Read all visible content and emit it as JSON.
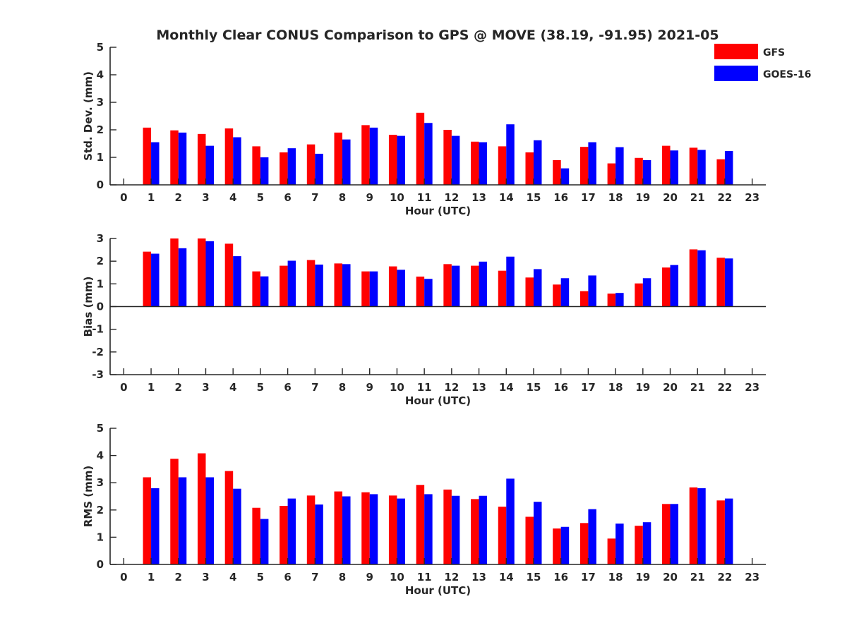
{
  "figure": {
    "title": "Monthly Clear CONUS Comparison to GPS @ MOVE (38.19, -91.95) 2021-05",
    "legend": {
      "placement": "top-right",
      "items": [
        {
          "name": "GFS",
          "color": "#ff0000"
        },
        {
          "name": "GOES-16",
          "color": "#0000ff"
        }
      ]
    }
  },
  "chart_data": [
    {
      "type": "bar",
      "xlabel": "Hour (UTC)",
      "ylabel": "Std. Dev. (mm)",
      "ylim": [
        0,
        5
      ],
      "yticks": [
        0,
        1,
        2,
        3,
        4,
        5
      ],
      "xlim": [
        -0.5,
        23.5
      ],
      "xticks": [
        0,
        1,
        2,
        3,
        4,
        5,
        6,
        7,
        8,
        9,
        10,
        11,
        12,
        13,
        14,
        15,
        16,
        17,
        18,
        19,
        20,
        21,
        22,
        23
      ],
      "grid": false,
      "categories": [
        1,
        2,
        3,
        4,
        5,
        6,
        7,
        8,
        9,
        10,
        11,
        12,
        13,
        14,
        15,
        16,
        17,
        18,
        19,
        20,
        21,
        22
      ],
      "series": [
        {
          "name": "GFS",
          "color": "#ff0000",
          "values": [
            2.08,
            1.98,
            1.85,
            2.05,
            1.4,
            1.18,
            1.47,
            1.9,
            2.17,
            1.82,
            2.62,
            2.0,
            1.57,
            1.4,
            1.18,
            0.9,
            1.38,
            0.78,
            0.98,
            1.42,
            1.35,
            0.93
          ]
        },
        {
          "name": "GOES-16",
          "color": "#0000ff",
          "values": [
            1.55,
            1.9,
            1.42,
            1.73,
            1.0,
            1.33,
            1.13,
            1.65,
            2.08,
            1.78,
            2.25,
            1.78,
            1.55,
            2.2,
            1.62,
            0.6,
            1.55,
            1.37,
            0.9,
            1.25,
            1.27,
            1.23
          ]
        }
      ]
    },
    {
      "type": "bar",
      "xlabel": "Hour (UTC)",
      "ylabel": "Bias (mm)",
      "ylim": [
        -3,
        3
      ],
      "yticks": [
        -3,
        -2,
        -1,
        0,
        1,
        2,
        3
      ],
      "xlim": [
        -0.5,
        23.5
      ],
      "xticks": [
        0,
        1,
        2,
        3,
        4,
        5,
        6,
        7,
        8,
        9,
        10,
        11,
        12,
        13,
        14,
        15,
        16,
        17,
        18,
        19,
        20,
        21,
        22,
        23
      ],
      "grid": false,
      "zero_line": true,
      "categories": [
        1,
        2,
        3,
        4,
        5,
        6,
        7,
        8,
        9,
        10,
        11,
        12,
        13,
        14,
        15,
        16,
        17,
        18,
        19,
        20,
        21,
        22
      ],
      "series": [
        {
          "name": "GFS",
          "color": "#ff0000",
          "values": [
            2.42,
            3.0,
            3.0,
            2.77,
            1.55,
            1.8,
            2.05,
            1.9,
            1.55,
            1.77,
            1.32,
            1.87,
            1.8,
            1.58,
            1.28,
            0.97,
            0.68,
            0.57,
            1.02,
            1.72,
            2.52,
            2.15
          ]
        },
        {
          "name": "GOES-16",
          "color": "#0000ff",
          "values": [
            2.33,
            2.57,
            2.88,
            2.22,
            1.33,
            2.02,
            1.85,
            1.87,
            1.55,
            1.62,
            1.22,
            1.8,
            1.98,
            2.2,
            1.65,
            1.25,
            1.37,
            0.6,
            1.25,
            1.83,
            2.48,
            2.12
          ]
        }
      ]
    },
    {
      "type": "bar",
      "xlabel": "Hour (UTC)",
      "ylabel": "RMS (mm)",
      "ylim": [
        0,
        5
      ],
      "yticks": [
        0,
        1,
        2,
        3,
        4,
        5
      ],
      "xlim": [
        -0.5,
        23.5
      ],
      "xticks": [
        0,
        1,
        2,
        3,
        4,
        5,
        6,
        7,
        8,
        9,
        10,
        11,
        12,
        13,
        14,
        15,
        16,
        17,
        18,
        19,
        20,
        21,
        22,
        23
      ],
      "grid": false,
      "categories": [
        1,
        2,
        3,
        4,
        5,
        6,
        7,
        8,
        9,
        10,
        11,
        12,
        13,
        14,
        15,
        16,
        17,
        18,
        19,
        20,
        21,
        22
      ],
      "series": [
        {
          "name": "GFS",
          "color": "#ff0000",
          "values": [
            3.2,
            3.88,
            4.08,
            3.43,
            2.08,
            2.15,
            2.53,
            2.68,
            2.65,
            2.53,
            2.92,
            2.75,
            2.4,
            2.12,
            1.75,
            1.32,
            1.52,
            0.95,
            1.42,
            2.22,
            2.83,
            2.35
          ]
        },
        {
          "name": "GOES-16",
          "color": "#0000ff",
          "values": [
            2.8,
            3.2,
            3.2,
            2.78,
            1.67,
            2.42,
            2.2,
            2.5,
            2.58,
            2.42,
            2.58,
            2.52,
            2.52,
            3.15,
            2.3,
            1.38,
            2.03,
            1.5,
            1.55,
            2.22,
            2.8,
            2.42
          ]
        }
      ]
    }
  ]
}
